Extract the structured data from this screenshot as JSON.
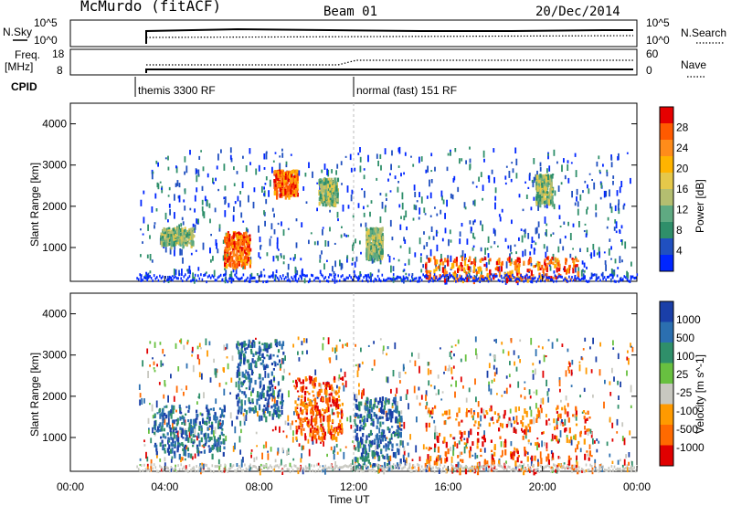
{
  "header": {
    "station": "McMurdo (fitACF)",
    "beam": "Beam 01",
    "date": "20/Dec/2014"
  },
  "top_panel": {
    "left_labels": {
      "nsky": "N.Sky",
      "freq_line1": "Freq.",
      "freq_line2": "[MHz]",
      "cpid": "CPID"
    },
    "right_labels": {
      "nsearch": "N.Search",
      "nave": "Nave"
    },
    "nsky_ticks": [
      "10^5",
      "10^0"
    ],
    "freq_ticks": [
      "18",
      "8"
    ],
    "nsearch_ticks": [
      "10^5",
      "10^0"
    ],
    "nave_ticks": [
      "60",
      "0"
    ],
    "cpid_entries": [
      {
        "label": "themis 3300 RF",
        "start_hour": 2.75
      },
      {
        "label": "normal (fast) 151 RF",
        "start_hour": 12.0
      }
    ]
  },
  "colors": {
    "missing": "#ffffff"
  },
  "chart_data": [
    {
      "type": "heatmap",
      "name": "power",
      "ylabel": "Slant Range [km]",
      "y_ticks": [
        "4000",
        "3000",
        "2000",
        "1000"
      ],
      "ylim": [
        180,
        4500
      ],
      "xlim_hours": [
        0,
        24
      ],
      "colorbar": {
        "label": "Power [dB]",
        "ticks": [
          "28",
          "24",
          "20",
          "16",
          "12",
          "8",
          "4"
        ],
        "colors": [
          "#e60000",
          "#ff5a00",
          "#ff8c1a",
          "#ffb400",
          "#e5c84a",
          "#b4be70",
          "#5faa82",
          "#2f8f6a",
          "#2050c0",
          "#0026ff"
        ]
      },
      "features": [
        {
          "t": [
            3.8,
            5.2
          ],
          "r": [
            1100,
            1500
          ],
          "level": "moderate"
        },
        {
          "t": [
            6.5,
            7.6
          ],
          "r": [
            600,
            1400
          ],
          "level": "strong"
        },
        {
          "t": [
            8.6,
            9.6
          ],
          "r": [
            2300,
            2900
          ],
          "level": "strong"
        },
        {
          "t": [
            10.5,
            11.3
          ],
          "r": [
            2100,
            2700
          ],
          "level": "moderate"
        },
        {
          "t": [
            12.5,
            13.2
          ],
          "r": [
            800,
            1500
          ],
          "level": "moderate"
        },
        {
          "t": [
            15.0,
            21.5
          ],
          "r": [
            250,
            800
          ],
          "level": "strong"
        },
        {
          "t": [
            19.7,
            20.4
          ],
          "r": [
            2100,
            2800
          ],
          "level": "moderate"
        }
      ]
    },
    {
      "type": "heatmap",
      "name": "velocity",
      "ylabel": "Slant Range [km]",
      "xlabel": "Time UT",
      "y_ticks": [
        "4000",
        "3000",
        "2000",
        "1000"
      ],
      "x_ticks": [
        "00:00",
        "04:00",
        "08:00",
        "12:00",
        "16:00",
        "20:00",
        "00:00"
      ],
      "ylim": [
        180,
        4500
      ],
      "xlim_hours": [
        0,
        24
      ],
      "colorbar": {
        "label": "Velocity [m s^-1]",
        "ticks": [
          "1000",
          "500",
          "100",
          "25",
          "-25",
          "-100",
          "-500",
          "-1000"
        ],
        "colors": [
          "#1a3fa8",
          "#2b6fb0",
          "#2f8f6a",
          "#68c040",
          "#c8c8c0",
          "#ff9a00",
          "#ff6a00",
          "#e00000"
        ]
      },
      "features": [
        {
          "t": [
            3.5,
            6.5
          ],
          "r": [
            600,
            1800
          ],
          "level": "positive"
        },
        {
          "t": [
            7.0,
            9.0
          ],
          "r": [
            1500,
            3400
          ],
          "level": "positive"
        },
        {
          "t": [
            9.5,
            11.5
          ],
          "r": [
            1000,
            2500
          ],
          "level": "negative"
        },
        {
          "t": [
            12.0,
            14.0
          ],
          "r": [
            300,
            2000
          ],
          "level": "positive"
        },
        {
          "t": [
            15.0,
            22.0
          ],
          "r": [
            200,
            1800
          ],
          "level": "negative"
        }
      ]
    }
  ]
}
